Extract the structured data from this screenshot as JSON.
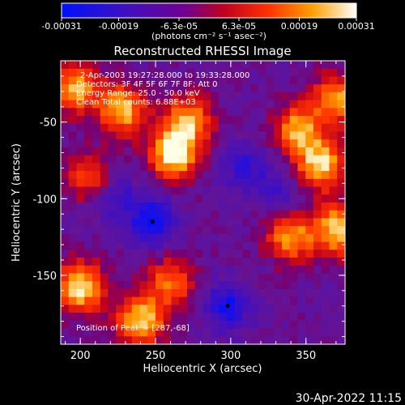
{
  "chart_data": {
    "type": "heatmap",
    "title": "Reconstructed RHESSI Image",
    "xlabel": "Heliocentric X (arcsec)",
    "ylabel": "Heliocentric Y (arcsec)",
    "xlim": [
      187,
      376
    ],
    "ylim": [
      -195,
      -10
    ],
    "x_ticks": [
      "200",
      "250",
      "300",
      "350"
    ],
    "x_tick_values": [
      200,
      250,
      300,
      350
    ],
    "y_ticks": [
      "-50",
      "-100",
      "-150"
    ],
    "y_tick_values": [
      -50,
      -100,
      -150
    ],
    "colorbar": {
      "ticks": [
        "-0.00031",
        "-0.00019",
        "-6.3e-05",
        "6.3e-05",
        "0.00019",
        "0.00031"
      ],
      "tick_values": [
        -0.00031,
        -0.00019,
        -6.3e-05,
        6.3e-05,
        0.00019,
        0.00031
      ],
      "range": [
        -0.00031,
        0.00031
      ],
      "unit_label": "(photons cm⁻² s⁻¹ asec⁻²)",
      "colormap": "blue-purple-red-orange-yellow-white"
    },
    "annotations": [
      "2-Apr-2003 19:27:28.000 to 19:33:28.000",
      "Detectors: 3F 4F 5F 6F 7F 8F; Att 0",
      "Energy Range: 25.0 - 50.0 keV",
      "Clean    Total counts: 6.88E+03",
      "Position of Peak = [287,-68]"
    ],
    "peak": [
      287,
      -68
    ],
    "hot_spots": [
      {
        "x": 196,
        "y": -28,
        "level": 0.75
      },
      {
        "x": 228,
        "y": -42,
        "level": 0.8
      },
      {
        "x": 262,
        "y": -70,
        "level": 1.0
      },
      {
        "x": 272,
        "y": -48,
        "level": 0.7
      },
      {
        "x": 345,
        "y": -55,
        "level": 0.75
      },
      {
        "x": 360,
        "y": -78,
        "level": 0.85
      },
      {
        "x": 370,
        "y": -35,
        "level": 0.7
      },
      {
        "x": 200,
        "y": -158,
        "level": 0.9
      },
      {
        "x": 240,
        "y": -180,
        "level": 0.85
      },
      {
        "x": 340,
        "y": -125,
        "level": 0.7
      },
      {
        "x": 372,
        "y": -120,
        "level": 0.85
      },
      {
        "x": 260,
        "y": -155,
        "level": 0.6
      },
      {
        "x": 205,
        "y": -85,
        "level": 0.5
      }
    ],
    "cold_spots": [
      {
        "x": 248,
        "y": -115,
        "level": 0.9
      },
      {
        "x": 298,
        "y": -170,
        "level": 0.8
      },
      {
        "x": 308,
        "y": -78,
        "level": 0.55
      },
      {
        "x": 225,
        "y": -100,
        "level": 0.5
      },
      {
        "x": 330,
        "y": -95,
        "level": 0.45
      }
    ]
  },
  "timestamp": "30-Apr-2022 11:15"
}
